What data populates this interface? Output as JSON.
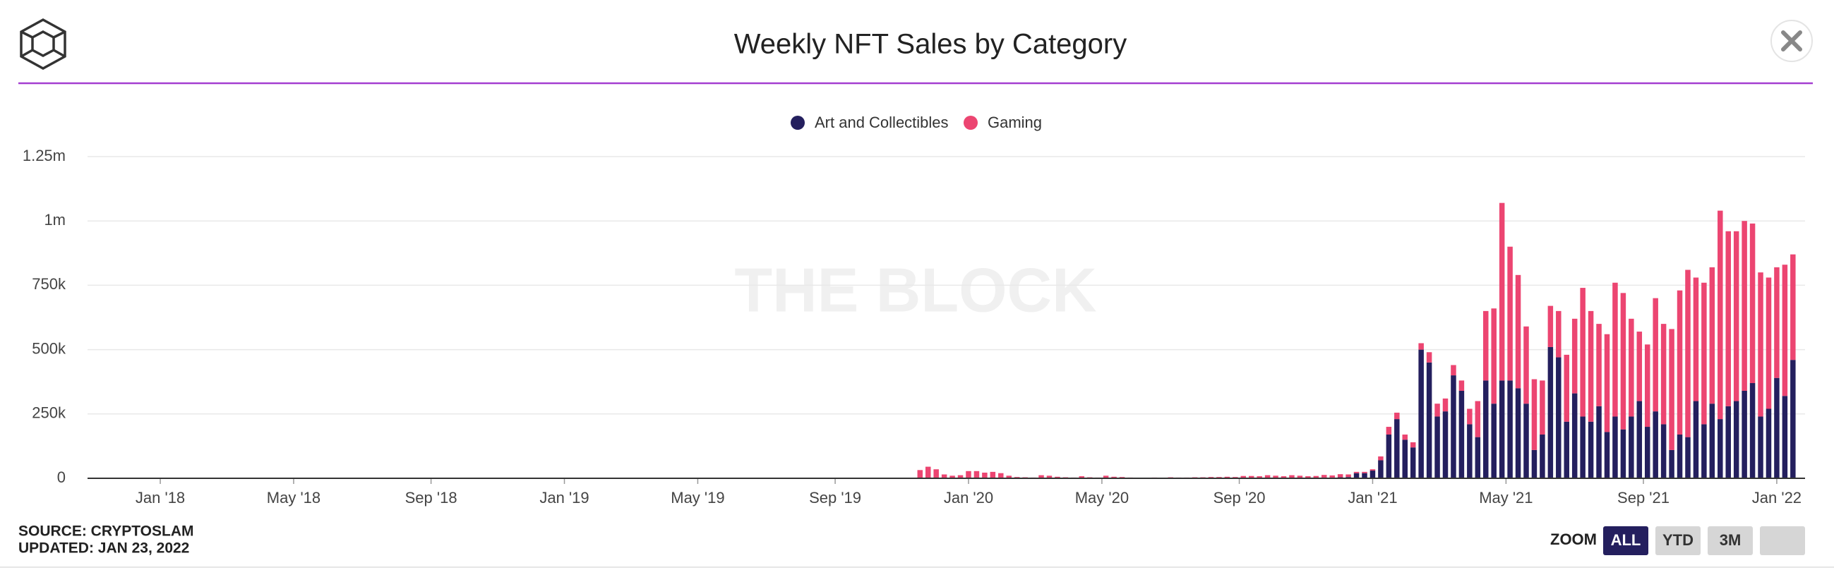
{
  "chart_data": {
    "type": "bar",
    "stacked": true,
    "title": "Weekly NFT Sales by Category",
    "watermark": "THE BLOCK",
    "source": "SOURCE: CRYPTOSLAM",
    "updated": "UPDATED: JAN 23, 2022",
    "zoom": {
      "label": "ZOOM",
      "buttons": [
        "ALL",
        "YTD",
        "3M"
      ]
    },
    "grid": true,
    "legend": "top",
    "xlim": [
      2017.82,
      2022.07
    ],
    "xticks": [
      {
        "value": 2018,
        "label": "Jan '18"
      },
      {
        "value": 2018.33,
        "label": "May '18"
      },
      {
        "value": 2018.67,
        "label": "Sep '18"
      },
      {
        "value": 2019,
        "label": "Jan '19"
      },
      {
        "value": 2019.33,
        "label": "May '19"
      },
      {
        "value": 2019.67,
        "label": "Sep '19"
      },
      {
        "value": 2020,
        "label": "Jan '20"
      },
      {
        "value": 2020.33,
        "label": "May '20"
      },
      {
        "value": 2020.67,
        "label": "Sep '20"
      },
      {
        "value": 2021,
        "label": "Jan '21"
      },
      {
        "value": 2021.33,
        "label": "May '21"
      },
      {
        "value": 2021.67,
        "label": "Sep '21"
      },
      {
        "value": 2022,
        "label": "Jan '22"
      }
    ],
    "ylim": [
      0,
      1250000
    ],
    "yticks": [
      0,
      {
        "value": 250000,
        "label": "250k"
      },
      {
        "value": 500000,
        "label": "500k"
      },
      {
        "value": 750000,
        "label": "750k"
      },
      {
        "value": 1000000,
        "label": "1m"
      },
      {
        "value": 1250000,
        "label": "1.25m"
      }
    ],
    "x": [
      2019.88,
      2019.9,
      2019.92,
      2019.94,
      2019.96,
      2019.98,
      2020.0,
      2020.02,
      2020.04,
      2020.06,
      2020.08,
      2020.1,
      2020.12,
      2020.14,
      2020.16,
      2020.18,
      2020.2,
      2020.22,
      2020.24,
      2020.26,
      2020.28,
      2020.3,
      2020.32,
      2020.34,
      2020.36,
      2020.38,
      2020.4,
      2020.42,
      2020.44,
      2020.46,
      2020.48,
      2020.5,
      2020.52,
      2020.54,
      2020.56,
      2020.58,
      2020.6,
      2020.62,
      2020.64,
      2020.66,
      2020.68,
      2020.7,
      2020.72,
      2020.74,
      2020.76,
      2020.78,
      2020.8,
      2020.82,
      2020.84,
      2020.86,
      2020.88,
      2020.9,
      2020.92,
      2020.94,
      2020.96,
      2020.98,
      2021.0,
      2021.02,
      2021.04,
      2021.06,
      2021.08,
      2021.1,
      2021.12,
      2021.14,
      2021.16,
      2021.18,
      2021.2,
      2021.22,
      2021.24,
      2021.26,
      2021.28,
      2021.3,
      2021.32,
      2021.34,
      2021.36,
      2021.38,
      2021.4,
      2021.42,
      2021.44,
      2021.46,
      2021.48,
      2021.5,
      2021.52,
      2021.54,
      2021.56,
      2021.58,
      2021.6,
      2021.62,
      2021.64,
      2021.66,
      2021.68,
      2021.7,
      2021.72,
      2021.74,
      2021.76,
      2021.78,
      2021.8,
      2021.82,
      2021.84,
      2021.86,
      2021.88,
      2021.9,
      2021.92,
      2021.94,
      2021.96,
      2021.98,
      2022.0,
      2022.02,
      2022.04
    ],
    "series": [
      {
        "name": "Art and Collectibles",
        "color": "#241f5e",
        "values": [
          0,
          0,
          0,
          0,
          0,
          0,
          0,
          0,
          0,
          0,
          0,
          0,
          0,
          0,
          0,
          0,
          0,
          0,
          0,
          0,
          0,
          0,
          0,
          0,
          0,
          0,
          0,
          0,
          0,
          0,
          0,
          0,
          0,
          0,
          0,
          0,
          0,
          0,
          0,
          0,
          0,
          0,
          0,
          0,
          0,
          0,
          0,
          0,
          0,
          0,
          3000,
          3000,
          4000,
          5000,
          20000,
          20000,
          30000,
          70000,
          170000,
          230000,
          150000,
          120000,
          500000,
          450000,
          240000,
          260000,
          400000,
          340000,
          210000,
          160000,
          380000,
          290000,
          380000,
          380000,
          350000,
          290000,
          110000,
          170000,
          510000,
          470000,
          220000,
          330000,
          240000,
          220000,
          280000,
          180000,
          240000,
          190000,
          240000,
          300000,
          200000,
          260000,
          210000,
          110000,
          170000,
          160000,
          300000,
          210000,
          290000,
          230000,
          280000,
          300000,
          340000,
          370000,
          240000,
          270000,
          390000,
          320000,
          460000
        ]
      },
      {
        "name": "Gaming",
        "color": "#ec4571",
        "values": [
          32000,
          45000,
          35000,
          15000,
          10000,
          12000,
          28000,
          28000,
          22000,
          25000,
          20000,
          10000,
          5000,
          4000,
          3000,
          12000,
          10000,
          6000,
          4000,
          3000,
          8000,
          4000,
          3000,
          10000,
          6000,
          5000,
          3000,
          2000,
          2000,
          3000,
          2000,
          4000,
          3000,
          3000,
          4000,
          4000,
          5000,
          5000,
          6000,
          5000,
          9000,
          9000,
          8000,
          12000,
          10000,
          8000,
          12000,
          10000,
          8000,
          9000,
          10000,
          8000,
          12000,
          10000,
          5000,
          5000,
          5000,
          15000,
          30000,
          25000,
          20000,
          20000,
          25000,
          40000,
          50000,
          50000,
          40000,
          40000,
          60000,
          140000,
          270000,
          370000,
          690000,
          520000,
          440000,
          300000,
          275000,
          210000,
          160000,
          180000,
          260000,
          290000,
          500000,
          430000,
          320000,
          380000,
          520000,
          530000,
          380000,
          270000,
          320000,
          440000,
          390000,
          470000,
          560000,
          650000,
          480000,
          550000,
          530000,
          810000,
          680000,
          660000,
          660000,
          620000,
          560000,
          510000,
          430000,
          510000,
          410000
        ]
      }
    ]
  }
}
